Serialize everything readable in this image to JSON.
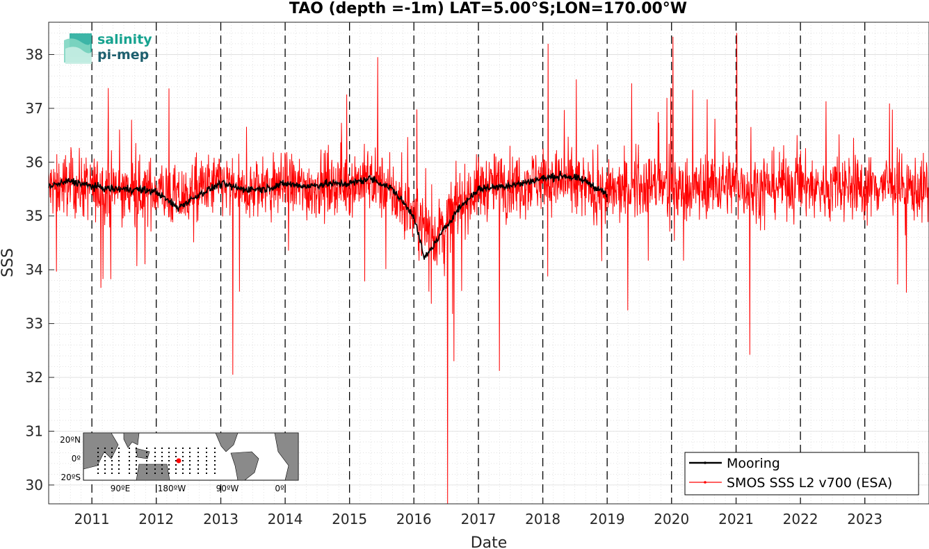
{
  "chart_data": {
    "type": "line",
    "title": "TAO (depth =-1m) LAT=5.00°S;LON=170.00°W",
    "xlabel": "Date",
    "ylabel": "SSS",
    "xlim": [
      "2010-05-01",
      "2023-12-31"
    ],
    "ylim": [
      29.65,
      38.6
    ],
    "x_ticks": [
      "2011",
      "2012",
      "2013",
      "2014",
      "2015",
      "2016",
      "2017",
      "2018",
      "2019",
      "2020",
      "2021",
      "2022",
      "2023"
    ],
    "y_ticks": [
      30,
      31,
      32,
      33,
      34,
      35,
      36,
      37,
      38
    ],
    "grid": "minor dotted",
    "year_boundaries": "dashed vertical lines at each January 1",
    "legend_position": "bottom-right",
    "series": [
      {
        "name": "Mooring",
        "color": "#000000",
        "x": [
          "2010-05-01",
          "2010-09-01",
          "2011-01-01",
          "2011-05-01",
          "2011-09-01",
          "2012-01-01",
          "2012-05-01",
          "2012-09-01",
          "2013-01-01",
          "2013-05-01",
          "2013-09-01",
          "2014-01-01",
          "2014-05-01",
          "2014-09-01",
          "2015-01-01",
          "2015-05-01",
          "2015-09-01",
          "2016-01-01",
          "2016-03-01",
          "2016-05-01",
          "2016-09-01",
          "2017-01-01",
          "2017-05-01",
          "2017-09-01",
          "2018-01-01",
          "2018-05-01",
          "2018-09-01",
          "2019-01-01"
        ],
        "values": [
          35.55,
          35.65,
          35.55,
          35.5,
          35.5,
          35.45,
          35.15,
          35.4,
          35.6,
          35.5,
          35.5,
          35.6,
          35.55,
          35.6,
          35.6,
          35.7,
          35.5,
          35.0,
          34.2,
          34.5,
          35.1,
          35.5,
          35.55,
          35.6,
          35.7,
          35.75,
          35.65,
          35.4
        ]
      },
      {
        "name": "SMOS SSS L2 v700 (ESA)",
        "color": "#ff0000",
        "x": [
          "2010-05-01",
          "2010-09-01",
          "2011-01-01",
          "2011-05-01",
          "2011-09-01",
          "2012-01-01",
          "2012-05-01",
          "2012-09-01",
          "2013-01-01",
          "2013-05-01",
          "2013-09-01",
          "2014-01-01",
          "2014-05-01",
          "2014-09-01",
          "2015-01-01",
          "2015-05-01",
          "2015-09-01",
          "2016-01-01",
          "2016-05-01",
          "2016-09-01",
          "2017-01-01",
          "2017-05-01",
          "2017-09-01",
          "2018-01-01",
          "2018-05-01",
          "2018-09-01",
          "2019-01-01",
          "2019-05-01",
          "2019-09-01",
          "2020-01-01",
          "2020-05-01",
          "2020-09-01",
          "2021-01-01",
          "2021-05-01",
          "2021-09-01",
          "2022-01-01",
          "2022-05-01",
          "2022-09-01",
          "2023-01-01",
          "2023-05-01",
          "2023-09-01",
          "2023-12-31"
        ],
        "values": [
          35.5,
          35.6,
          35.5,
          35.5,
          35.4,
          35.5,
          35.3,
          35.5,
          35.6,
          35.4,
          35.5,
          35.6,
          35.5,
          35.6,
          35.6,
          35.7,
          35.4,
          35.0,
          34.6,
          35.2,
          35.5,
          35.6,
          35.6,
          35.7,
          35.6,
          35.5,
          35.4,
          35.5,
          35.6,
          35.5,
          35.5,
          35.6,
          35.6,
          35.5,
          35.6,
          35.6,
          35.5,
          35.6,
          35.5,
          35.6,
          35.5,
          35.5
        ],
        "notable_values": [
          {
            "x": "2013-03-10",
            "y": 32.05
          },
          {
            "x": "2015-06-10",
            "y": 37.95
          },
          {
            "x": "2016-07-10",
            "y": 29.62
          },
          {
            "x": "2016-08-15",
            "y": 32.3
          },
          {
            "x": "2017-05-01",
            "y": 32.12
          },
          {
            "x": "2018-02-01",
            "y": 38.2
          },
          {
            "x": "2020-01-10",
            "y": 38.33
          },
          {
            "x": "2021-01-05",
            "y": 38.4
          },
          {
            "x": "2021-03-20",
            "y": 32.42
          }
        ]
      }
    ]
  },
  "logo": {
    "line1": "salinity",
    "line2": "pi-mep"
  },
  "inset_map": {
    "lat_labels": [
      "20ºN",
      "0º",
      "20ºS"
    ],
    "lon_labels": [
      "90ºE",
      "180ºW",
      "90ºW",
      "0º"
    ],
    "marker_color": "#ff0000"
  }
}
